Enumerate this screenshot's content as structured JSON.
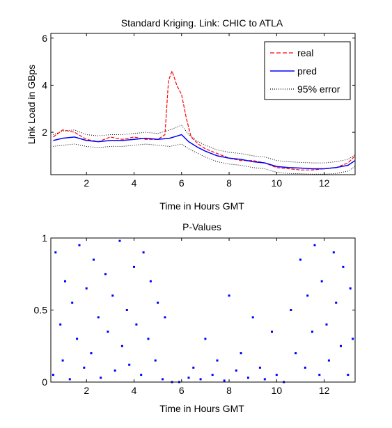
{
  "chart_data": [
    {
      "type": "line",
      "title": "Standard Kriging.  Link:  CHIC to ATLA",
      "xlabel": "Time in Hours GMT",
      "ylabel": "Link Load in GBps",
      "xlim": [
        0.5,
        13.3
      ],
      "ylim": [
        0.2,
        6.2
      ],
      "xticks": [
        2,
        4,
        6,
        8,
        10,
        12
      ],
      "yticks": [
        2,
        4,
        6
      ],
      "grid": false,
      "legend_position": "top-right",
      "series": [
        {
          "name": "real",
          "color": "#ff0000",
          "style": "dashed",
          "x": [
            0.6,
            1.0,
            1.5,
            2.0,
            2.5,
            3.0,
            3.5,
            4.0,
            4.5,
            5.0,
            5.3,
            5.45,
            5.6,
            5.8,
            6.0,
            6.2,
            6.4,
            6.7,
            7.0,
            7.5,
            8.0,
            8.5,
            9.0,
            9.5,
            10.0,
            10.5,
            11.0,
            11.5,
            12.0,
            12.5,
            13.0,
            13.3
          ],
          "values": [
            1.8,
            2.1,
            2.0,
            1.7,
            1.6,
            1.8,
            1.7,
            1.8,
            1.7,
            1.7,
            1.9,
            4.2,
            4.6,
            4.0,
            3.6,
            2.6,
            1.8,
            1.5,
            1.3,
            1.1,
            0.9,
            0.8,
            0.8,
            0.7,
            0.5,
            0.45,
            0.4,
            0.4,
            0.45,
            0.5,
            0.7,
            1.0
          ]
        },
        {
          "name": "pred",
          "color": "#0000ff",
          "style": "solid",
          "x": [
            0.6,
            1.0,
            1.5,
            2.0,
            2.5,
            3.0,
            3.5,
            4.0,
            4.5,
            5.0,
            5.5,
            6.0,
            6.3,
            6.7,
            7.0,
            7.5,
            8.0,
            8.5,
            9.0,
            9.5,
            10.0,
            10.5,
            11.0,
            11.5,
            12.0,
            12.5,
            13.0,
            13.3
          ],
          "values": [
            1.65,
            1.75,
            1.8,
            1.65,
            1.6,
            1.65,
            1.65,
            1.7,
            1.75,
            1.7,
            1.75,
            1.9,
            1.6,
            1.35,
            1.2,
            1.0,
            0.9,
            0.85,
            0.75,
            0.7,
            0.55,
            0.5,
            0.48,
            0.45,
            0.45,
            0.5,
            0.6,
            0.8
          ]
        },
        {
          "name": "95% error",
          "color": "#000000",
          "style": "dotted",
          "x": [
            0.6,
            1.0,
            1.5,
            2.0,
            2.5,
            3.0,
            3.5,
            4.0,
            4.5,
            5.0,
            5.5,
            6.0,
            6.3,
            6.7,
            7.0,
            7.5,
            8.0,
            8.5,
            9.0,
            9.5,
            10.0,
            10.5,
            11.0,
            11.5,
            12.0,
            12.5,
            13.0,
            13.3
          ],
          "values": [
            1.9,
            2.05,
            2.1,
            1.9,
            1.85,
            1.9,
            1.9,
            1.95,
            2.0,
            1.95,
            2.1,
            2.3,
            1.9,
            1.6,
            1.45,
            1.25,
            1.15,
            1.1,
            1.0,
            0.95,
            0.8,
            0.75,
            0.72,
            0.7,
            0.7,
            0.75,
            0.85,
            1.05
          ],
          "lower_values": [
            1.4,
            1.45,
            1.5,
            1.4,
            1.35,
            1.4,
            1.4,
            1.45,
            1.5,
            1.45,
            1.4,
            1.5,
            1.3,
            1.1,
            0.95,
            0.75,
            0.65,
            0.6,
            0.5,
            0.45,
            0.3,
            0.25,
            0.24,
            0.22,
            0.22,
            0.25,
            0.35,
            0.55
          ]
        }
      ]
    },
    {
      "type": "scatter",
      "title": "P-Values",
      "xlabel": "Time in Hours GMT",
      "ylabel": "",
      "xlim": [
        0.5,
        13.3
      ],
      "ylim": [
        0,
        1
      ],
      "xticks": [
        2,
        4,
        6,
        8,
        10,
        12
      ],
      "yticks": [
        0,
        0.5,
        1
      ],
      "grid": false,
      "marker_color": "#0000ff",
      "series": [
        {
          "name": "",
          "x": [
            0.6,
            0.7,
            0.9,
            1.0,
            1.1,
            1.3,
            1.4,
            1.6,
            1.7,
            1.9,
            2.0,
            2.2,
            2.3,
            2.5,
            2.6,
            2.8,
            2.9,
            3.1,
            3.2,
            3.4,
            3.5,
            3.7,
            3.8,
            4.0,
            4.1,
            4.3,
            4.4,
            4.6,
            4.7,
            4.9,
            5.0,
            5.2,
            5.3,
            5.6,
            5.9,
            6.3,
            6.5,
            6.8,
            7.0,
            7.3,
            7.5,
            7.8,
            8.0,
            8.3,
            8.5,
            8.8,
            9.0,
            9.3,
            9.5,
            9.8,
            10.0,
            10.3,
            10.6,
            10.8,
            11.0,
            11.2,
            11.3,
            11.5,
            11.6,
            11.8,
            11.9,
            12.1,
            12.2,
            12.4,
            12.5,
            12.7,
            12.8,
            13.0,
            13.1,
            13.2
          ],
          "values": [
            0.05,
            0.9,
            0.4,
            0.15,
            0.7,
            0.02,
            0.55,
            0.3,
            0.95,
            0.1,
            0.65,
            0.2,
            0.85,
            0.45,
            0.03,
            0.75,
            0.35,
            0.6,
            0.08,
            0.98,
            0.25,
            0.5,
            0.12,
            0.8,
            0.4,
            0.05,
            0.9,
            0.3,
            0.7,
            0.15,
            0.55,
            0.02,
            0.45,
            0.0,
            0.0,
            0.03,
            0.1,
            0.02,
            0.3,
            0.05,
            0.15,
            0.01,
            0.6,
            0.08,
            0.2,
            0.03,
            0.45,
            0.1,
            0.02,
            0.35,
            0.05,
            0.0,
            0.5,
            0.2,
            0.85,
            0.1,
            0.6,
            0.35,
            0.95,
            0.05,
            0.7,
            0.4,
            0.15,
            0.9,
            0.55,
            0.25,
            0.8,
            0.05,
            0.65,
            0.3
          ]
        }
      ]
    }
  ]
}
